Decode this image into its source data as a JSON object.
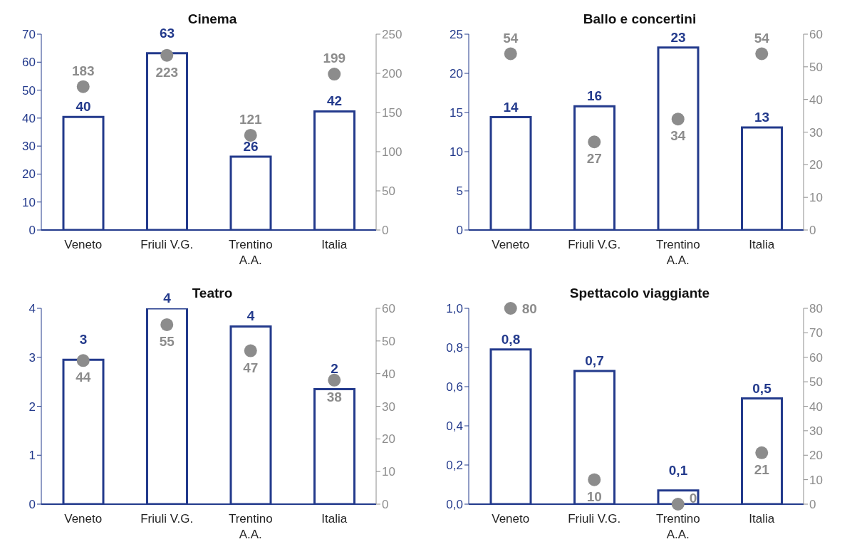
{
  "chart_data": [
    {
      "type": "bar",
      "title": "Cinema",
      "categories": [
        "Veneto",
        "Friuli V.G.",
        "Trentino A.A.",
        "Italia"
      ],
      "ylim": [
        0,
        70
      ],
      "yticks": [
        0,
        10,
        20,
        30,
        40,
        50,
        60,
        70
      ],
      "y2lim": [
        0,
        250
      ],
      "y2ticks": [
        0,
        50,
        100,
        150,
        200,
        250
      ],
      "grid": false,
      "legend": false,
      "series": [
        {
          "type": "bar",
          "color": "#233a8c",
          "values": [
            40.4,
            63.2,
            26.2,
            42.4
          ],
          "value_labels": [
            "40",
            "63",
            "26",
            "42"
          ]
        },
        {
          "type": "scatter",
          "axis": "y2",
          "color": "#8c8c8c",
          "values": [
            183,
            223,
            121,
            199
          ],
          "value_labels": [
            "183",
            "223",
            "121",
            "199"
          ]
        }
      ]
    },
    {
      "type": "bar",
      "title": "Ballo e concertini",
      "categories": [
        "Veneto",
        "Friuli V.G.",
        "Trentino A.A.",
        "Italia"
      ],
      "ylim": [
        0,
        25
      ],
      "yticks": [
        0,
        5,
        10,
        15,
        20,
        25
      ],
      "y2lim": [
        0,
        60
      ],
      "y2ticks": [
        0,
        10,
        20,
        30,
        40,
        50,
        60
      ],
      "grid": false,
      "legend": false,
      "series": [
        {
          "type": "bar",
          "color": "#233a8c",
          "values": [
            14.4,
            15.8,
            23.3,
            13.1
          ],
          "value_labels": [
            "14",
            "16",
            "23",
            "13"
          ]
        },
        {
          "type": "scatter",
          "axis": "y2",
          "color": "#8c8c8c",
          "values": [
            54,
            27,
            34,
            54
          ],
          "value_labels": [
            "54",
            "27",
            "34",
            "54"
          ]
        }
      ]
    },
    {
      "type": "bar",
      "title": "Teatro",
      "categories": [
        "Veneto",
        "Friuli V.G.",
        "Trentino A.A.",
        "Italia"
      ],
      "ylim": [
        0,
        4
      ],
      "yticks": [
        0,
        1,
        2,
        3,
        4
      ],
      "y2lim": [
        0,
        60
      ],
      "y2ticks": [
        0,
        10,
        20,
        30,
        40,
        50,
        60
      ],
      "grid": false,
      "legend": false,
      "series": [
        {
          "type": "bar",
          "color": "#233a8c",
          "values": [
            2.95,
            4.0,
            3.63,
            2.35
          ],
          "value_labels": [
            "3",
            "4",
            "4",
            "2"
          ]
        },
        {
          "type": "scatter",
          "axis": "y2",
          "color": "#8c8c8c",
          "values": [
            44,
            55,
            47,
            38
          ],
          "value_labels": [
            "44",
            "55",
            "47",
            "38"
          ]
        }
      ]
    },
    {
      "type": "bar",
      "title": "Spettacolo viaggiante",
      "categories": [
        "Veneto",
        "Friuli V.G.",
        "Trentino A.A.",
        "Italia"
      ],
      "ylim": [
        0,
        1
      ],
      "yticks": [
        {
          "value": 0,
          "label": "0,0"
        },
        {
          "value": 0.2,
          "label": "0,2"
        },
        {
          "value": 0.4,
          "label": "0,4"
        },
        {
          "value": 0.6,
          "label": "0,6"
        },
        {
          "value": 0.8,
          "label": "0,8"
        },
        {
          "value": 1,
          "label": "1,0"
        }
      ],
      "y2lim": [
        0,
        80
      ],
      "y2ticks": [
        0,
        10,
        20,
        30,
        40,
        50,
        60,
        70,
        80
      ],
      "grid": false,
      "legend": false,
      "series": [
        {
          "type": "bar",
          "color": "#233a8c",
          "values": [
            0.79,
            0.68,
            0.07,
            0.54
          ],
          "value_labels": [
            "0,8",
            "0,7",
            "0,1",
            "0,5"
          ]
        },
        {
          "type": "scatter",
          "axis": "y2",
          "color": "#8c8c8c",
          "values": [
            80,
            10,
            0,
            21
          ],
          "value_labels": [
            "80",
            "10",
            "0",
            "21"
          ]
        }
      ]
    }
  ]
}
